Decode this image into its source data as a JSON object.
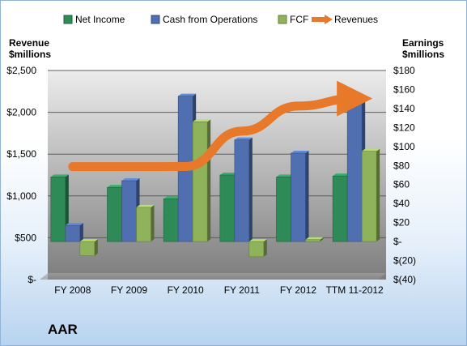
{
  "company": "AAR",
  "chart_data": {
    "type": "bar",
    "categories": [
      "FY 2008",
      "FY 2009",
      "FY 2010",
      "FY 2011",
      "FY 2012",
      "TTM 11-2012"
    ],
    "series": [
      {
        "name": "Net Income",
        "axis": "right",
        "kind": "bar",
        "color": "#2e8b57",
        "values": [
          68,
          57,
          45,
          70,
          68,
          69
        ]
      },
      {
        "name": "Cash from Operations",
        "axis": "right",
        "kind": "bar",
        "color": "#4f6fb0",
        "values": [
          17,
          64,
          153,
          107,
          93,
          151
        ]
      },
      {
        "name": "FCF",
        "axis": "right",
        "kind": "bar",
        "color": "#8fb35a",
        "values": [
          -15,
          36,
          126,
          -16,
          2,
          95
        ]
      },
      {
        "name": "Revenues",
        "axis": "left",
        "kind": "line",
        "color": "#e8782a",
        "values": [
          1350,
          1350,
          1352,
          1775,
          2075,
          2165
        ]
      }
    ],
    "left_axis": {
      "title": [
        "Revenue",
        "$millions"
      ],
      "ylim": [
        0,
        2500
      ],
      "ticks": [
        0,
        500,
        1000,
        1500,
        2000,
        2500
      ],
      "tick_labels": [
        "$-",
        "$500",
        "$1,000",
        "$1,500",
        "$2,000",
        "$2,500"
      ]
    },
    "right_axis": {
      "title": [
        "Earnings",
        "$millions"
      ],
      "ylim": [
        -40,
        180
      ],
      "ticks": [
        -40,
        -20,
        0,
        20,
        40,
        60,
        80,
        100,
        120,
        140,
        160,
        180
      ],
      "tick_labels": [
        "$(40)",
        "$(20)",
        "$-",
        "$20",
        "$40",
        "$60",
        "$80",
        "$100",
        "$120",
        "$140",
        "$160",
        "$180"
      ]
    },
    "legend_position": "top",
    "grid": true
  }
}
